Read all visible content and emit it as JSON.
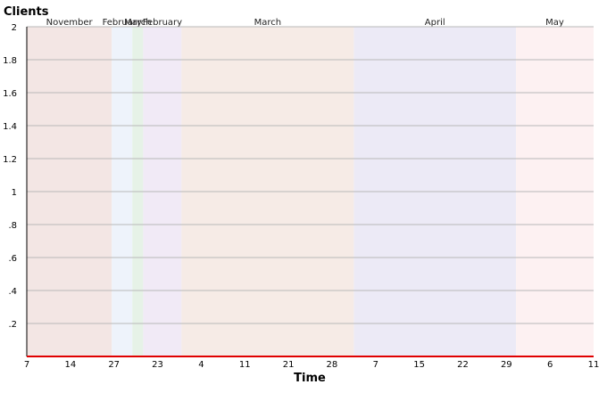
{
  "chart_data": {
    "type": "line",
    "ylabel": "Clients",
    "xlabel": "Time",
    "ylim": [
      0,
      2
    ],
    "yticks": [
      {
        "value": 0.2,
        "label": ".2"
      },
      {
        "value": 0.4,
        "label": ".4"
      },
      {
        "value": 0.6,
        "label": ".6"
      },
      {
        "value": 0.8,
        "label": ".8"
      },
      {
        "value": 1.0,
        "label": "1"
      },
      {
        "value": 1.2,
        "label": "1.2"
      },
      {
        "value": 1.4,
        "label": "1.4"
      },
      {
        "value": 1.6,
        "label": "1.6"
      },
      {
        "value": 1.8,
        "label": "1.8"
      },
      {
        "value": 2.0,
        "label": "2"
      }
    ],
    "xlim": [
      0,
      13
    ],
    "xticks": [
      {
        "value": 0,
        "label": "7"
      },
      {
        "value": 1,
        "label": "14"
      },
      {
        "value": 2,
        "label": "27"
      },
      {
        "value": 3,
        "label": "23"
      },
      {
        "value": 4,
        "label": "4"
      },
      {
        "value": 5,
        "label": "11"
      },
      {
        "value": 6,
        "label": "21"
      },
      {
        "value": 7,
        "label": "28"
      },
      {
        "value": 8,
        "label": "7"
      },
      {
        "value": 9,
        "label": "15"
      },
      {
        "value": 10,
        "label": "22"
      },
      {
        "value": 11,
        "label": "29"
      },
      {
        "value": 12,
        "label": "6"
      },
      {
        "value": 13,
        "label": "11"
      }
    ],
    "bands": [
      {
        "label": "November",
        "start": 0.0,
        "end": 1.95,
        "color": "#f3e6e4"
      },
      {
        "label": "February",
        "start": 1.95,
        "end": 2.42,
        "color": "#eef3fb"
      },
      {
        "label": "March",
        "start": 2.42,
        "end": 2.67,
        "color": "#e6f2e7"
      },
      {
        "label": "February",
        "start": 2.67,
        "end": 3.55,
        "color": "#f1eaf6"
      },
      {
        "label": "March",
        "start": 3.55,
        "end": 7.5,
        "color": "#f6ebe6"
      },
      {
        "label": "April",
        "start": 7.5,
        "end": 11.22,
        "color": "#eceaf6"
      },
      {
        "label": "May",
        "start": 11.22,
        "end": 13.0,
        "color": "#fdf1f2"
      }
    ],
    "grid": true,
    "series": [
      {
        "x": [
          0,
          13
        ],
        "y": [
          0,
          0
        ],
        "color": "#e00000"
      }
    ]
  }
}
